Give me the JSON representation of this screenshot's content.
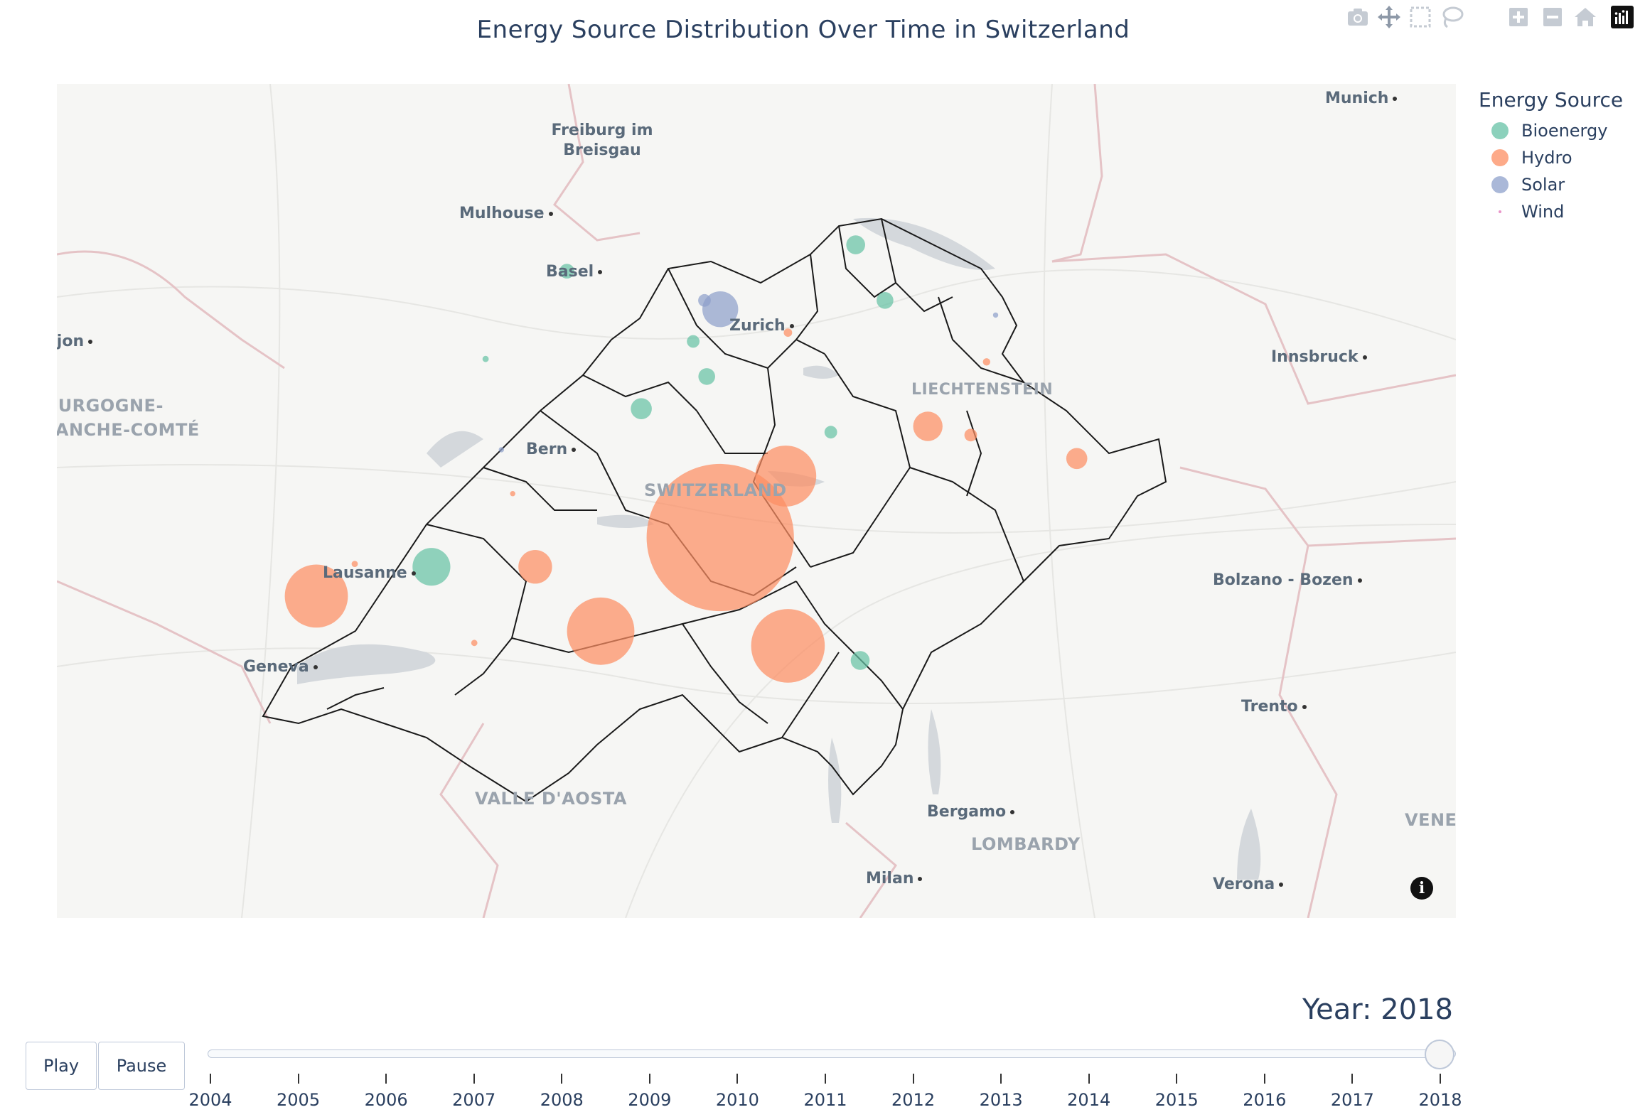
{
  "title": "Energy Source Distribution Over Time in Switzerland",
  "modebar": [
    {
      "name": "camera-icon"
    },
    {
      "name": "pan-icon"
    },
    {
      "name": "box-select-icon"
    },
    {
      "name": "lasso-select-icon"
    },
    {
      "name": "zoom-in-icon"
    },
    {
      "name": "zoom-out-icon"
    },
    {
      "name": "home-icon"
    },
    {
      "name": "plotly-logo-icon"
    }
  ],
  "map": {
    "places": [
      "Munich",
      "Freiburg im Breisgau",
      "Mulhouse",
      "Basel",
      "Zurich",
      "Bern",
      "Lausanne",
      "Geneva",
      "Innsbruck",
      "Bolzano - Bozen",
      "Trento",
      "Bergamo",
      "Milan",
      "Verona",
      "Dijon"
    ],
    "regions": [
      "SWITZERLAND",
      "LIECHTENSTEIN",
      "VALLE D'AOSTA",
      "LOMBARDY",
      "BOURGOGNE-FRANCHE-COMTÉ",
      "VENETO"
    ],
    "info_glyph": "i"
  },
  "chart_data": {
    "type": "scatter",
    "title": "Energy Source Distribution Over Time in Switzerland",
    "frame": "2018",
    "legend_title": "Energy Source",
    "legend_position": "top-right",
    "series": [
      {
        "name": "Bioenergy",
        "color": "#66c2a5"
      },
      {
        "name": "Hydro",
        "color": "#fc8d62"
      },
      {
        "name": "Solar",
        "color": "#8da0cb"
      },
      {
        "name": "Wind",
        "color": "#e78ac3"
      }
    ],
    "points": [
      {
        "source": "Bioenergy",
        "lon": 7.66,
        "lat": 47.56,
        "size": 14
      },
      {
        "source": "Bioenergy",
        "lon": 8.94,
        "lat": 47.65,
        "size": 18
      },
      {
        "source": "Bioenergy",
        "lon": 9.07,
        "lat": 47.46,
        "size": 16
      },
      {
        "source": "Bioenergy",
        "lon": 8.22,
        "lat": 47.32,
        "size": 12
      },
      {
        "source": "Bioenergy",
        "lon": 7.3,
        "lat": 47.26,
        "size": 6
      },
      {
        "source": "Bioenergy",
        "lon": 8.28,
        "lat": 47.2,
        "size": 16
      },
      {
        "source": "Bioenergy",
        "lon": 7.99,
        "lat": 47.09,
        "size": 20
      },
      {
        "source": "Bioenergy",
        "lon": 8.83,
        "lat": 47.01,
        "size": 12
      },
      {
        "source": "Bioenergy",
        "lon": 7.06,
        "lat": 46.55,
        "size": 36
      },
      {
        "source": "Bioenergy",
        "lon": 8.96,
        "lat": 46.23,
        "size": 18
      },
      {
        "source": "Hydro",
        "lon": 8.64,
        "lat": 47.35,
        "size": 8
      },
      {
        "source": "Hydro",
        "lon": 9.52,
        "lat": 47.25,
        "size": 7
      },
      {
        "source": "Hydro",
        "lon": 9.26,
        "lat": 47.03,
        "size": 28
      },
      {
        "source": "Hydro",
        "lon": 9.45,
        "lat": 47.0,
        "size": 12
      },
      {
        "source": "Hydro",
        "lon": 9.92,
        "lat": 46.92,
        "size": 20
      },
      {
        "source": "Hydro",
        "lon": 8.63,
        "lat": 46.86,
        "size": 58
      },
      {
        "source": "Hydro",
        "lon": 8.34,
        "lat": 46.65,
        "size": 140
      },
      {
        "source": "Hydro",
        "lon": 7.52,
        "lat": 46.55,
        "size": 32
      },
      {
        "source": "Hydro",
        "lon": 6.72,
        "lat": 46.56,
        "size": 6
      },
      {
        "source": "Hydro",
        "lon": 6.55,
        "lat": 46.45,
        "size": 60
      },
      {
        "source": "Hydro",
        "lon": 7.81,
        "lat": 46.33,
        "size": 64
      },
      {
        "source": "Hydro",
        "lon": 8.64,
        "lat": 46.28,
        "size": 70
      },
      {
        "source": "Hydro",
        "lon": 7.25,
        "lat": 46.29,
        "size": 6
      },
      {
        "source": "Hydro",
        "lon": 7.42,
        "lat": 46.8,
        "size": 5
      },
      {
        "source": "Solar",
        "lon": 8.34,
        "lat": 47.43,
        "size": 34
      },
      {
        "source": "Solar",
        "lon": 8.27,
        "lat": 47.46,
        "size": 12
      },
      {
        "source": "Solar",
        "lon": 9.56,
        "lat": 47.41,
        "size": 5
      },
      {
        "source": "Solar",
        "lon": 7.37,
        "lat": 46.95,
        "size": 5
      }
    ],
    "slider": {
      "prefix": "Year: ",
      "current": "2018",
      "years": [
        "2004",
        "2005",
        "2006",
        "2007",
        "2008",
        "2009",
        "2010",
        "2011",
        "2012",
        "2013",
        "2014",
        "2015",
        "2016",
        "2017",
        "2018"
      ]
    }
  },
  "controls": {
    "play_label": "Play",
    "pause_label": "Pause"
  }
}
